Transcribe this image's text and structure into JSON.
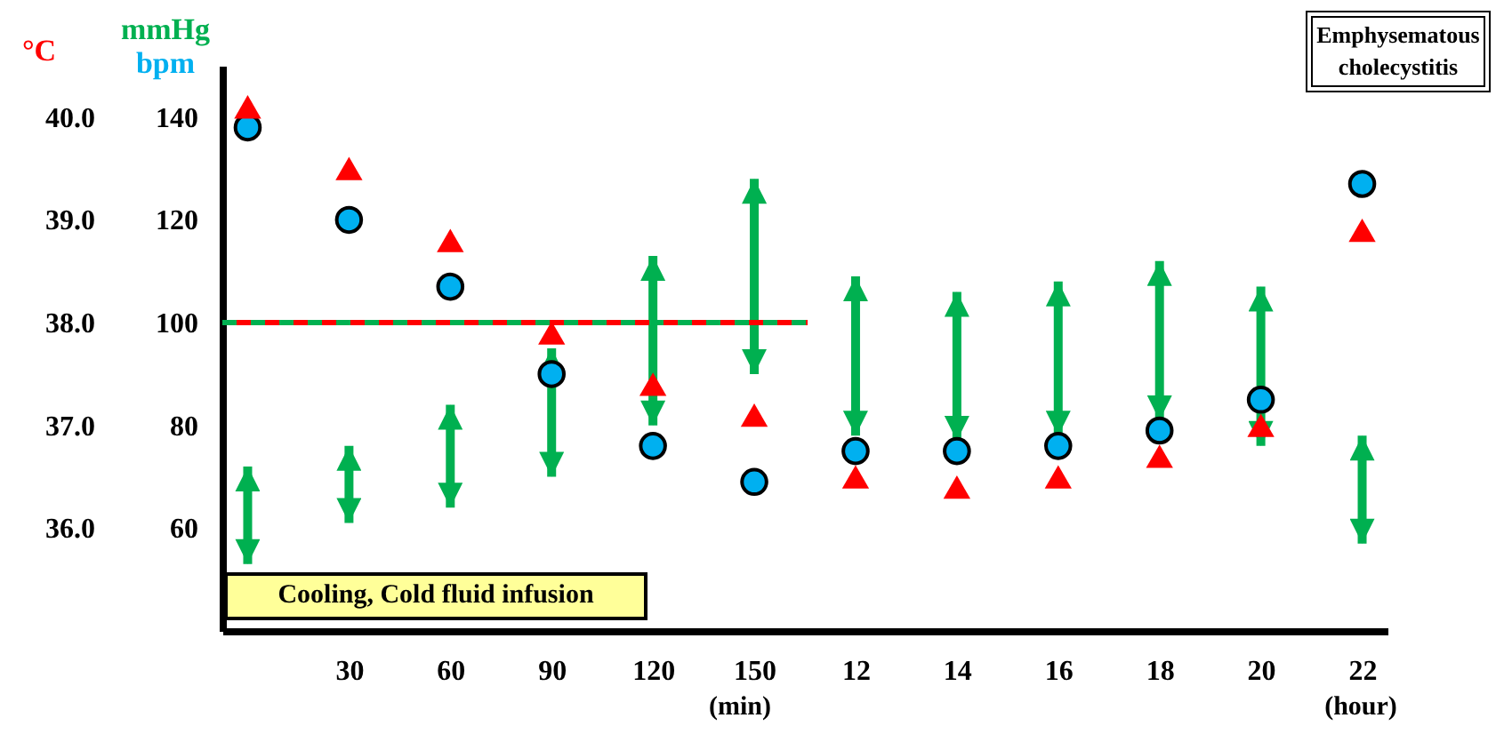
{
  "chart_data": {
    "type": "scatter",
    "categories": [
      null,
      "30",
      "60",
      "90",
      "120",
      "150",
      "12",
      "14",
      "16",
      "18",
      "20",
      "22"
    ],
    "series": [
      {
        "name": "°C",
        "marker": "triangle",
        "axis": "y2",
        "color": "#ff0000",
        "values": [
          40.1,
          39.5,
          38.8,
          37.9,
          37.4,
          37.1,
          36.5,
          36.4,
          36.5,
          36.7,
          37.0,
          38.9
        ]
      },
      {
        "name": "mmHg",
        "type": "bar",
        "color": "#00b050",
        "base": [
          53,
          61,
          64,
          70,
          80,
          90,
          78,
          77,
          78,
          81,
          76,
          57
        ],
        "values": [
          19,
          15,
          20,
          25,
          33,
          38,
          31,
          29,
          30,
          31,
          31,
          21
        ]
      },
      {
        "name": "bpm",
        "marker": "circle",
        "color": "#00b0f0",
        "values": [
          138,
          120,
          107,
          90,
          76,
          69,
          75,
          75,
          76,
          79,
          85,
          127
        ]
      }
    ],
    "ylim": [
      40,
      150
    ],
    "yticks": [
      60,
      80,
      100,
      120,
      140
    ],
    "y2lim": [
      35.0,
      40.5
    ],
    "y2ticks": [
      {
        "value": 36,
        "label": "36.0"
      },
      {
        "value": 37,
        "label": "37.0"
      },
      {
        "value": 38,
        "label": "38.0"
      },
      {
        "value": 39,
        "label": "39.0"
      },
      {
        "value": 40,
        "label": "40.0"
      }
    ],
    "ref_lines": [
      {
        "axis": "y",
        "value": 100,
        "color": "#00b050",
        "line_style": "dashed"
      },
      {
        "axis": "y2",
        "value": 38.0,
        "color": "#ff0000",
        "line_style": "dashed"
      }
    ],
    "annotations": [
      "Emphysematous cholecystitis",
      "Cooling, Cold fluid infusion",
      "(min)",
      "(hour)"
    ],
    "legend": "top left",
    "grid": false
  }
}
